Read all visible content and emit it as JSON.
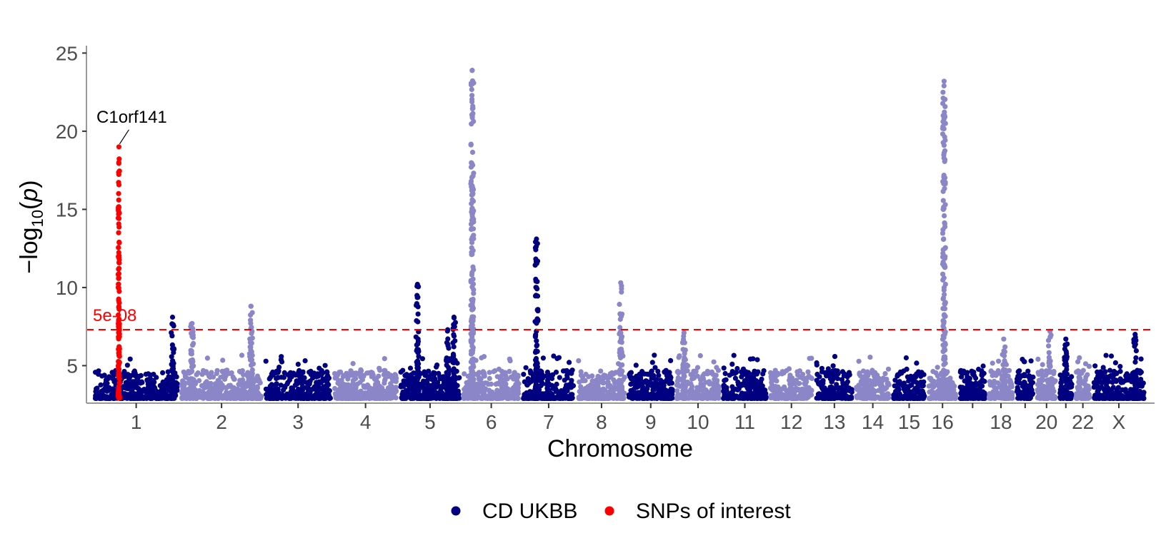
{
  "chart_data": {
    "type": "scatter",
    "subtype": "manhattan",
    "xlabel": "Chromosome",
    "ylabel": "-log10(p)",
    "ylim": [
      2.6,
      25.2
    ],
    "yticks": [
      5,
      10,
      15,
      20,
      25
    ],
    "min_plotted_p": 2.9,
    "threshold": {
      "value": 7.3,
      "label": "5e-08",
      "color": "#ff0000",
      "style": "dashed"
    },
    "colors": {
      "dark": "#000080",
      "light": "#8a86c8",
      "highlight": "#ff0000",
      "axis": "#000000",
      "tick_text": "#4d4d4d"
    },
    "chromosomes": [
      {
        "name": "1",
        "label": "1",
        "size": 249
      },
      {
        "name": "2",
        "label": "2",
        "size": 242
      },
      {
        "name": "3",
        "label": "3",
        "size": 198
      },
      {
        "name": "4",
        "label": "4",
        "size": 190
      },
      {
        "name": "5",
        "label": "5",
        "size": 181
      },
      {
        "name": "6",
        "label": "6",
        "size": 171
      },
      {
        "name": "7",
        "label": "7",
        "size": 159
      },
      {
        "name": "8",
        "label": "8",
        "size": 145
      },
      {
        "name": "9",
        "label": "9",
        "size": 138
      },
      {
        "name": "10",
        "label": "10",
        "size": 134
      },
      {
        "name": "11",
        "label": "11",
        "size": 135
      },
      {
        "name": "12",
        "label": "12",
        "size": 133
      },
      {
        "name": "13",
        "label": "13",
        "size": 114
      },
      {
        "name": "14",
        "label": "14",
        "size": 107
      },
      {
        "name": "15",
        "label": "15",
        "size": 102
      },
      {
        "name": "16",
        "label": "16",
        "size": 90
      },
      {
        "name": "17",
        "label": "",
        "size": 83
      },
      {
        "name": "18",
        "label": "18",
        "size": 80
      },
      {
        "name": "19",
        "label": "",
        "size": 59
      },
      {
        "name": "20",
        "label": "20",
        "size": 64
      },
      {
        "name": "21",
        "label": "",
        "size": 47
      },
      {
        "name": "22",
        "label": "22",
        "size": 51
      },
      {
        "name": "X",
        "label": "X",
        "size": 156
      }
    ],
    "peaks": [
      {
        "chrom": "1",
        "pos": 0.3,
        "max": 19.0,
        "highlight": true,
        "label": "C1orf141"
      },
      {
        "chrom": "1",
        "pos": 0.92,
        "max": 8.1
      },
      {
        "chrom": "2",
        "pos": 0.15,
        "max": 7.7
      },
      {
        "chrom": "2",
        "pos": 0.85,
        "max": 8.8
      },
      {
        "chrom": "5",
        "pos": 0.3,
        "max": 10.2
      },
      {
        "chrom": "5",
        "pos": 0.78,
        "max": 7.3
      },
      {
        "chrom": "5",
        "pos": 0.88,
        "max": 8.1
      },
      {
        "chrom": "6",
        "pos": 0.18,
        "max": 23.9
      },
      {
        "chrom": "7",
        "pos": 0.28,
        "max": 13.1
      },
      {
        "chrom": "8",
        "pos": 0.88,
        "max": 10.3
      },
      {
        "chrom": "10",
        "pos": 0.2,
        "max": 7.1
      },
      {
        "chrom": "16",
        "pos": 0.55,
        "max": 23.2
      },
      {
        "chrom": "18",
        "pos": 0.6,
        "max": 6.7
      },
      {
        "chrom": "20",
        "pos": 0.65,
        "max": 7.2
      },
      {
        "chrom": "21",
        "pos": 0.5,
        "max": 6.7
      },
      {
        "chrom": "X",
        "pos": 0.8,
        "max": 7.0
      }
    ]
  },
  "legend": {
    "items": [
      {
        "label": "CD UKBB",
        "color": "#000080"
      },
      {
        "label": "SNPs of interest",
        "color": "#ff0000"
      }
    ]
  }
}
